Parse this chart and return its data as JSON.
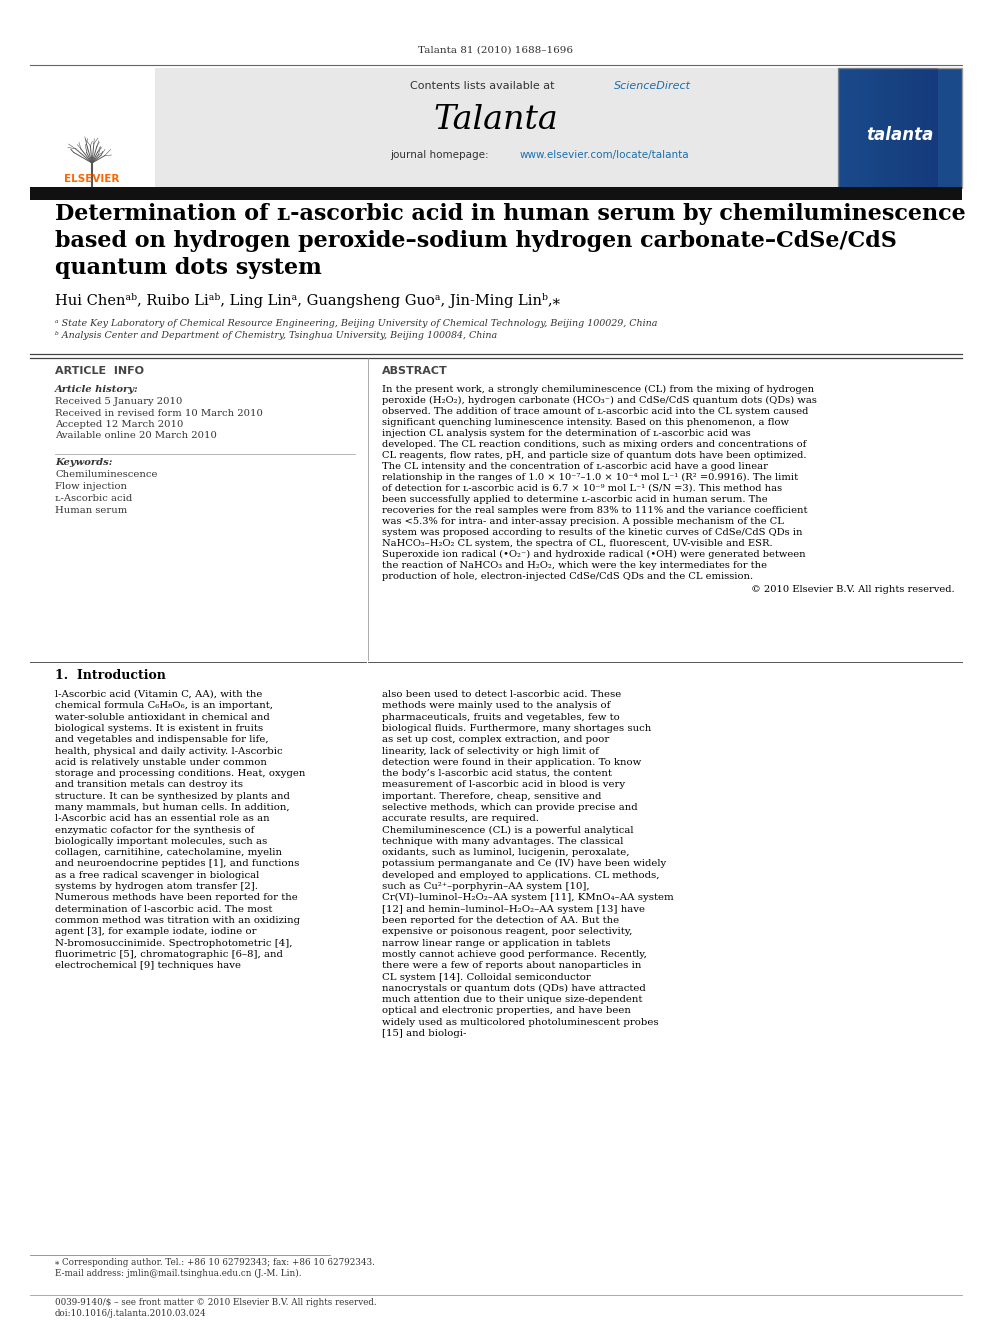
{
  "page_width": 9.92,
  "page_height": 13.23,
  "bg_color": "#ffffff",
  "journal_ref": "Talanta 81 (2010) 1688–1696",
  "header_bg": "#e8e8e8",
  "sciencedirect_color": "#1a6fad",
  "journal_name": "Talanta",
  "homepage_color": "#1a6fad",
  "black_bar_color": "#1a1a1a",
  "title_line1": "Determination of ʟ-ascorbic acid in human serum by chemiluminescence",
  "title_line2": "based on hydrogen peroxide–sodium hydrogen carbonate–CdSe/CdS",
  "title_line3": "quantum dots system",
  "authors": "Hui Chenᵃᵇ, Ruibo Liᵃᵇ, Ling Linᵃ, Guangsheng Guoᵃ, Jin-Ming Linᵇ,⁎",
  "affil_a": "ᵃ State Key Laboratory of Chemical Resource Engineering, Beijing University of Chemical Technology, Beijing 100029, China",
  "affil_b": "ᵇ Analysis Center and Department of Chemistry, Tsinghua University, Beijing 100084, China",
  "article_info_header": "ARTICLE  INFO",
  "abstract_header": "ABSTRACT",
  "article_history_label": "Article history:",
  "received": "Received 5 January 2010",
  "received_revised": "Received in revised form 10 March 2010",
  "accepted": "Accepted 12 March 2010",
  "available": "Available online 20 March 2010",
  "keywords_label": "Keywords:",
  "keywords": [
    "Chemiluminescence",
    "Flow injection",
    "ʟ-Ascorbic acid",
    "Human serum"
  ],
  "abstract_text": "In the present work, a strongly chemiluminescence (CL) from the mixing of hydrogen peroxide (H₂O₂), hydrogen carbonate (HCO₃⁻) and CdSe/CdS quantum dots (QDs) was observed. The addition of trace amount of ʟ-ascorbic acid into the CL system caused significant quenching luminescence intensity. Based on this phenomenon, a flow injection CL analysis system for the determination of ʟ-ascorbic acid was developed. The CL reaction conditions, such as mixing orders and concentrations of CL reagents, flow rates, pH, and particle size of quantum dots have been optimized. The CL intensity and the concentration of ʟ-ascorbic acid have a good linear relationship in the ranges of 1.0 × 10⁻⁷–1.0 × 10⁻⁴ mol L⁻¹ (R² =0.9916). The limit of detection for ʟ-ascorbic acid is 6.7 × 10⁻⁹ mol L⁻¹ (S/N =3). This method has been successfully applied to determine ʟ-ascorbic acid in human serum. The recoveries for the real samples were from 83% to 111% and the variance coefficient was <5.3% for intra- and inter-assay precision. A possible mechanism of the CL system was proposed according to results of the kinetic curves of CdSe/CdS QDs in NaHCO₃–H₂O₂ CL system, the spectra of CL, fluorescent, UV-visible and ESR. Superoxide ion radical (•O₂⁻) and hydroxide radical (•OH) were generated between the reaction of NaHCO₃ and H₂O₂, which were the key intermediates for the production of hole, electron-injected CdSe/CdS QDs and the CL emission.",
  "abstract_copyright": "© 2010 Elsevier B.V. All rights reserved.",
  "intro_header": "1.  Introduction",
  "intro_text_left": "l-Ascorbic acid (Vitamin C, AA), with the chemical formula C₆H₈O₆, is an important, water-soluble antioxidant in chemical and biological systems. It is existent in fruits and vegetables and indispensable for life, health, physical and daily activity. l-Ascorbic acid is relatively unstable under common storage and processing conditions. Heat, oxygen and transition metals can destroy its structure. It can be synthesized by plants and many mammals, but human cells. In addition, l-Ascorbic acid has an essential role as an enzymatic cofactor for the synthesis of biologically important molecules, such as collagen, carnitihine, catecholamine, myelin and neuroendocrine peptides [1], and functions as a free radical scavenger in biological systems by hydrogen atom transfer [2].\n    Numerous methods have been reported for the determination of l-ascorbic acid. The most common method was titration with an oxidizing agent [3], for example iodate, iodine or N-bromosuccinimide. Spectrophotometric [4], fluorimetric [5], chromatographic [6–8], and electrochemical [9] techniques have",
  "intro_text_right": "also been used to detect l-ascorbic acid. These methods were mainly used to the analysis of pharmaceuticals, fruits and vegetables, few to biological fluids. Furthermore, many shortages such as set up cost, complex extraction, and poor linearity, lack of selectivity or high limit of detection were found in their application. To know the body’s l-ascorbic acid status, the content measurement of l-ascorbic acid in blood is very important. Therefore, cheap, sensitive and selective methods, which can provide precise and accurate results, are required.\n    Chemiluminescence (CL) is a powerful analytical technique with many advantages. The classical oxidants, such as luminol, lucigenin, peroxalate, potassium permanganate and Ce (IV) have been widely developed and employed to applications. CL methods, such as Cu²⁺–porphyrin–AA system [10], Cr(VI)–luminol–H₂O₂–AA system [11], KMnO₄–AA system [12] and hemin–luminol–H₂O₂–AA system [13] have been reported for the detection of AA. But the expensive or poisonous reagent, poor selectivity, narrow linear range or application in tablets mostly cannot achieve good performance. Recently, there were a few of reports about nanoparticles in CL system [14]. Colloidal semiconductor nanocrystals or quantum dots (QDs) have attracted much attention due to their unique size-dependent optical and electronic properties, and have been widely used as multicolored photoluminescent probes [15] and biologi-",
  "footnote_star": "⁎ Corresponding author. Tel.: +86 10 62792343; fax: +86 10 62792343.",
  "footnote_email": "E-mail address: jmlin@mail.tsinghua.edu.cn (J.-M. Lin).",
  "footer_issn": "0039-9140/$ – see front matter © 2010 Elsevier B.V. All rights reserved.",
  "footer_doi": "doi:10.1016/j.talanta.2010.03.024",
  "elsevier_color": "#ff6600",
  "talanta_cover_bg": "#1a4a8a"
}
